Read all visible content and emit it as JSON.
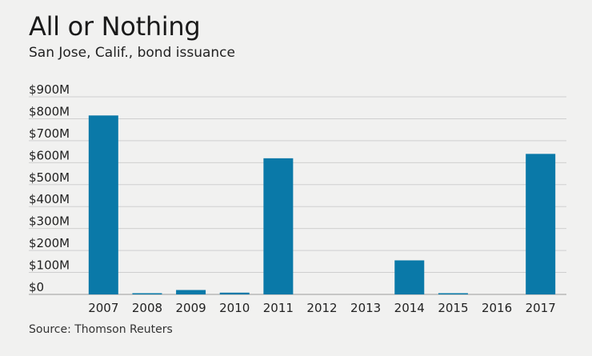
{
  "title": "All or Nothing",
  "subtitle": "San Jose, Calif., bond issuance",
  "source": "Source: Thomson Reuters",
  "colors": {
    "bar": "#0a79a8",
    "grid": "#cfcfcf",
    "background": "#f1f1f0"
  },
  "chart_data": {
    "type": "bar",
    "title": "All or Nothing",
    "subtitle": "San Jose, Calif., bond issuance",
    "categories": [
      "2007",
      "2008",
      "2009",
      "2010",
      "2011",
      "2012",
      "2013",
      "2014",
      "2015",
      "2016",
      "2017"
    ],
    "values": [
      815,
      5,
      20,
      8,
      620,
      0,
      0,
      155,
      3,
      0,
      640
    ],
    "unit": "$M",
    "ylim": [
      0,
      900
    ],
    "yticks": [
      0,
      100,
      200,
      300,
      400,
      500,
      600,
      700,
      800,
      900
    ],
    "ytick_labels": [
      "$0",
      "$100M",
      "$200M",
      "$300M",
      "$400M",
      "$500M",
      "$600M",
      "$700M",
      "$800M",
      "$900M"
    ],
    "xlabel": "",
    "ylabel": "",
    "grid": true,
    "legend": "none"
  }
}
